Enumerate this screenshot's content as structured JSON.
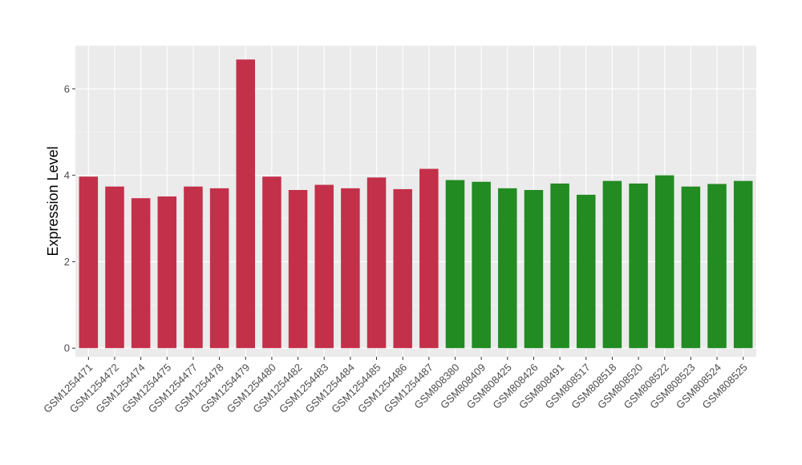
{
  "chart_data": {
    "type": "bar",
    "title": "",
    "xlabel": "",
    "ylabel": "Expression Level",
    "ylim": [
      -0.2,
      7.0
    ],
    "yticks": [
      0,
      2,
      4,
      6
    ],
    "grid": true,
    "legend": "none",
    "colors": {
      "panel_bg": "#ebebeb",
      "grid_major": "#ffffff",
      "group_a": "#c3304a",
      "group_b": "#228b22"
    },
    "categories": [
      "GSM1254471",
      "GSM1254472",
      "GSM1254474",
      "GSM1254475",
      "GSM1254477",
      "GSM1254478",
      "GSM1254479",
      "GSM1254480",
      "GSM1254482",
      "GSM1254483",
      "GSM1254484",
      "GSM1254485",
      "GSM1254486",
      "GSM1254487",
      "GSM808380",
      "GSM808409",
      "GSM808425",
      "GSM808426",
      "GSM808491",
      "GSM808517",
      "GSM808518",
      "GSM808520",
      "GSM808522",
      "GSM808523",
      "GSM808524",
      "GSM808525"
    ],
    "values": [
      3.97,
      3.74,
      3.47,
      3.51,
      3.74,
      3.7,
      6.68,
      3.97,
      3.66,
      3.78,
      3.7,
      3.95,
      3.68,
      4.15,
      3.89,
      3.85,
      3.7,
      3.66,
      3.81,
      3.55,
      3.87,
      3.81,
      4.0,
      3.74,
      3.8,
      3.87
    ],
    "groups": [
      "a",
      "a",
      "a",
      "a",
      "a",
      "a",
      "a",
      "a",
      "a",
      "a",
      "a",
      "a",
      "a",
      "a",
      "b",
      "b",
      "b",
      "b",
      "b",
      "b",
      "b",
      "b",
      "b",
      "b",
      "b",
      "b"
    ]
  }
}
